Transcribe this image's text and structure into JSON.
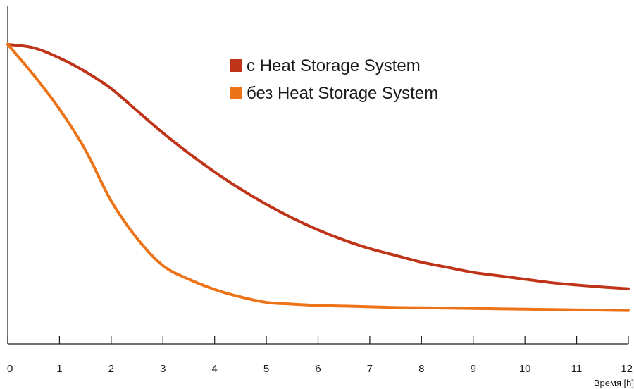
{
  "chart_data": {
    "type": "line",
    "title": "",
    "xlabel": "Время [h]",
    "ylabel": "",
    "xlim": [
      0,
      12
    ],
    "ylim": [
      0,
      100
    ],
    "y_ticks_shown": false,
    "grid": false,
    "legend_position": "top-center",
    "x": [
      0,
      0.5,
      1,
      1.5,
      2,
      2.5,
      3,
      3.5,
      4,
      4.5,
      5,
      5.5,
      6,
      6.5,
      7,
      7.5,
      8,
      8.5,
      9,
      9.5,
      10,
      10.5,
      11,
      11.5,
      12
    ],
    "x_tick_labels": [
      "0",
      "1",
      "2",
      "3",
      "4",
      "5",
      "6",
      "7",
      "8",
      "9",
      "10",
      "11",
      "12"
    ],
    "series": [
      {
        "name": "с Heat Storage System",
        "color": "#bf3418",
        "values": [
          88,
          87,
          84,
          80,
          75,
          68.5,
          62,
          56,
          50.5,
          45.5,
          41,
          37,
          33.5,
          30.5,
          28,
          26,
          24,
          22.5,
          21,
          20,
          19,
          18,
          17.3,
          16.7,
          16.2
        ]
      },
      {
        "name": "без Heat Storage System",
        "color": "#ec7317",
        "values": [
          88,
          79,
          69,
          57,
          42,
          31,
          23,
          19,
          16,
          13.8,
          12.2,
          11.7,
          11.3,
          11.1,
          10.9,
          10.7,
          10.6,
          10.5,
          10.4,
          10.3,
          10.2,
          10.1,
          10.0,
          9.9,
          9.8
        ]
      }
    ]
  }
}
